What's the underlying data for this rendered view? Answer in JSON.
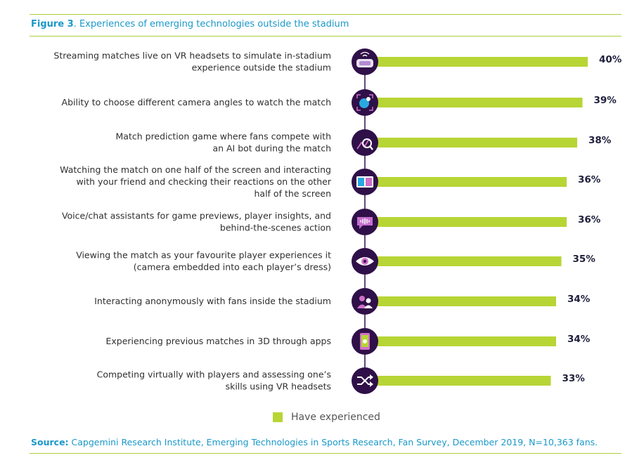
{
  "figure": {
    "label": "Figure 3",
    "caption": ". Experiences of emerging technologies outside the stadium"
  },
  "source": {
    "label": "Source:",
    "text": " Capgemini Research Institute, Emerging Technologies in Sports Research, Fan Survey, December 2019, N=10,363 fans."
  },
  "colors": {
    "bar": "#b7d535",
    "icon_circle": "#2f1048",
    "accent": "#1a98c8",
    "rule": "#a9cf3a"
  },
  "chart_data": {
    "type": "bar",
    "orientation": "horizontal",
    "categories": [
      [
        "Streaming matches live on VR headsets to simulate in-stadium",
        "experience outside the stadium"
      ],
      [
        "Ability to choose different camera angles to watch the match"
      ],
      [
        "Match prediction game where fans compete with",
        "an AI bot during the match"
      ],
      [
        "Watching the match on one half of the screen and interacting",
        "with your friend and checking their reactions on the other",
        "half of the screen"
      ],
      [
        "Voice/chat assistants for game previews, player insights, and",
        "behind-the-scenes action"
      ],
      [
        "Viewing the match as your favourite player experiences it",
        "(camera embedded into each player’s dress)"
      ],
      [
        "Interacting anonymously with fans inside the stadium"
      ],
      [
        "Experiencing previous matches in 3D through apps"
      ],
      [
        "Competing virtually with players and assessing one’s",
        "skills using VR headsets"
      ]
    ],
    "icons": [
      "vr-headset-icon",
      "camera-angle-icon",
      "prediction-chart-icon",
      "split-screen-icon",
      "voice-chat-icon",
      "player-eye-icon",
      "anonymous-fans-icon",
      "3d-phone-icon",
      "shuffle-icon"
    ],
    "series": [
      {
        "name": "Have experienced",
        "values": [
          40,
          39,
          38,
          36,
          36,
          35,
          34,
          34,
          33
        ]
      }
    ],
    "value_suffix": "%",
    "legend": "bottom-center",
    "grid": false
  }
}
